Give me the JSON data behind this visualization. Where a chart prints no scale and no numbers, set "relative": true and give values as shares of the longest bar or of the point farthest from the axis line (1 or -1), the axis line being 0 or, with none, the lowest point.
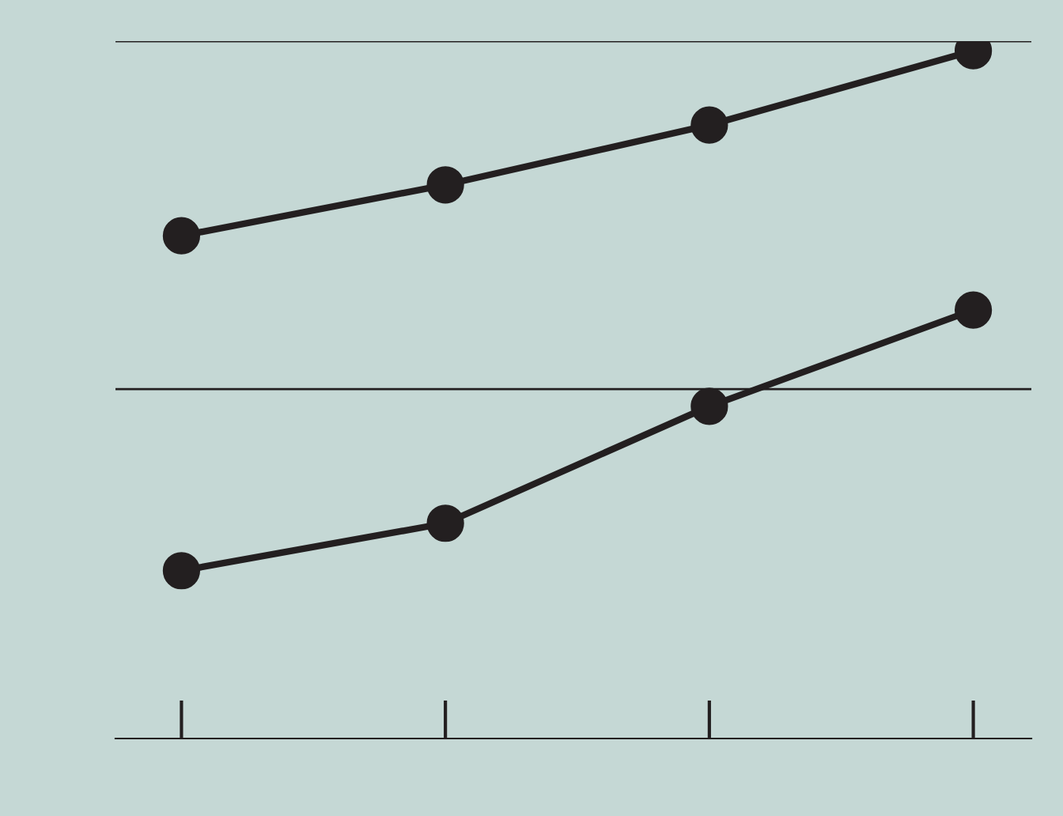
{
  "chart_data": {
    "type": "line",
    "relative": true,
    "categories": [
      null,
      null,
      null,
      null
    ],
    "series": [
      {
        "color": "#231f20",
        "values": [
          0.731,
          0.805,
          0.892,
          1
        ]
      },
      {
        "color": "#231f20",
        "values": [
          0.244,
          0.313,
          0.483,
          0.623
        ]
      }
    ],
    "ref_lines": [
      {
        "axis": "y",
        "value": 0.508,
        "color": "#231f20"
      },
      {
        "axis": "y",
        "value": 1.014,
        "color": "#231f20"
      }
    ],
    "marker": "circle",
    "line_style": "solid",
    "legend": false
  }
}
